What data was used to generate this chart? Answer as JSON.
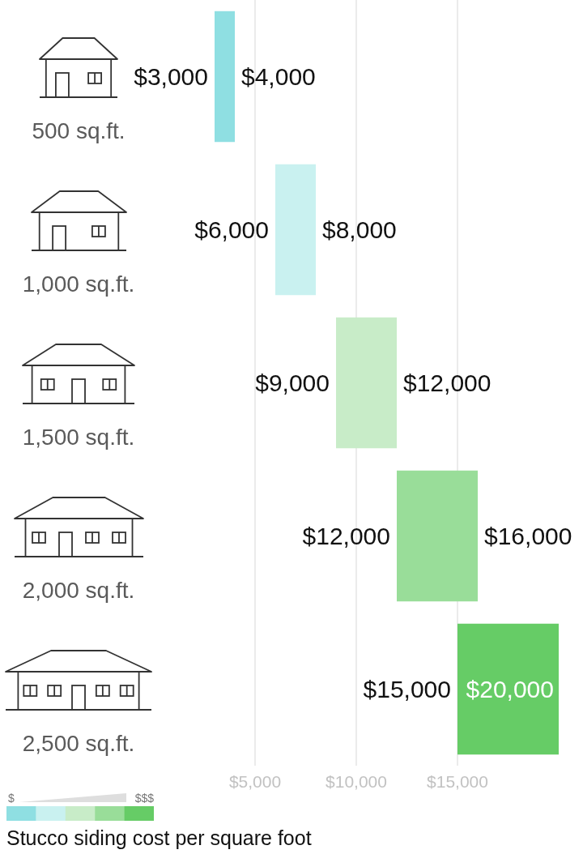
{
  "chart_data": {
    "type": "bar",
    "orientation": "horizontal",
    "title": "Stucco siding cost per square foot",
    "categories": [
      "500 sq.ft.",
      "1,000 sq.ft.",
      "1,500 sq.ft.",
      "2,000 sq.ft.",
      "2,500 sq.ft."
    ],
    "base": [
      3000,
      6000,
      9000,
      12000,
      15000
    ],
    "values": [
      1000,
      2000,
      3000,
      4000,
      5000
    ],
    "colors": [
      "#8fdfe2",
      "#c9f1f0",
      "#c8ecc8",
      "#99dd99",
      "#66cc66"
    ],
    "value_labels": [
      "$4,000",
      "$8,000",
      "$12,000",
      "$16,000",
      "$20,000"
    ],
    "annotations": [
      {
        "text": "$3,000",
        "x": 3000,
        "y": "500 sq.ft."
      },
      {
        "text": "$6,000",
        "x": 6000,
        "y": "1,000 sq.ft."
      },
      {
        "text": "$9,000",
        "x": 9000,
        "y": "1,500 sq.ft."
      },
      {
        "text": "$12,000",
        "x": 12000,
        "y": "2,000 sq.ft."
      },
      {
        "text": "$15,000",
        "x": 15000,
        "y": "2,500 sq.ft."
      },
      "$",
      "$$$"
    ],
    "xlim": [
      0,
      20000
    ],
    "xticks": [
      {
        "value": 5000,
        "label": "$5,000"
      },
      {
        "value": 10000,
        "label": "$10,000"
      },
      {
        "value": 15000,
        "label": "$15,000"
      }
    ],
    "grid": "x"
  }
}
